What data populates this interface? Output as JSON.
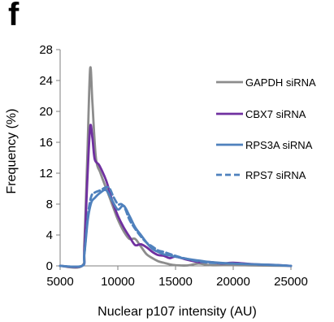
{
  "panel_label": "f",
  "chart_data": {
    "type": "line",
    "title": "",
    "xlabel": "Nuclear p107 intensity (AU)",
    "ylabel": "Frequency (%)",
    "xlim": [
      5000,
      25000
    ],
    "ylim": [
      0,
      28
    ],
    "xticks": [
      5000,
      10000,
      15000,
      20000,
      25000
    ],
    "yticks": [
      0,
      4,
      8,
      12,
      16,
      20,
      24,
      28
    ],
    "grid": false,
    "legend_position": "right",
    "series": [
      {
        "name": "GAPDH siRNA",
        "color": "#8c8c8c",
        "style": "solid",
        "x": [
          5000,
          6900,
          7100,
          7350,
          7600,
          7800,
          8100,
          8500,
          9000,
          9500,
          10000,
          10500,
          11000,
          11500,
          12000,
          12500,
          13000,
          13500,
          14000,
          14500,
          15000,
          16000,
          17000,
          18000,
          20000,
          22000,
          25000
        ],
        "y": [
          0,
          0,
          3.0,
          14.0,
          25.5,
          21.0,
          14.0,
          12.0,
          10.0,
          8.0,
          6.0,
          4.5,
          3.5,
          3.5,
          2.5,
          1.5,
          1.0,
          0.6,
          0.4,
          0.2,
          0.1,
          0.05,
          0.3,
          0.1,
          0.1,
          0.05,
          0
        ]
      },
      {
        "name": "CBX7 siRNA",
        "color": "#7030a0",
        "style": "solid",
        "x": [
          5000,
          6900,
          7100,
          7350,
          7600,
          7800,
          8000,
          8400,
          9000,
          9500,
          10000,
          10500,
          11000,
          11500,
          12000,
          12500,
          13000,
          13500,
          14000,
          14500,
          15000,
          16000,
          17000,
          18000,
          19000,
          20000,
          22000,
          24000,
          25000
        ],
        "y": [
          0,
          0,
          2.0,
          11.0,
          18.0,
          16.5,
          13.8,
          13.0,
          11.0,
          8.5,
          6.5,
          5.0,
          3.8,
          2.7,
          2.8,
          2.4,
          1.8,
          1.4,
          1.3,
          1.0,
          1.2,
          0.8,
          0.5,
          0.5,
          0.3,
          0.4,
          0.2,
          0.1,
          0
        ]
      },
      {
        "name": "RPS3A siRNA",
        "color": "#4f81bd",
        "style": "solid",
        "x": [
          5000,
          6900,
          7100,
          7400,
          7700,
          8000,
          8500,
          9000,
          9500,
          10000,
          10500,
          11000,
          11500,
          12000,
          12500,
          13000,
          13500,
          14000,
          15000,
          16000,
          17000,
          18000,
          20000,
          22000,
          24000,
          25000
        ],
        "y": [
          0,
          0,
          1.5,
          6.0,
          8.2,
          8.8,
          9.5,
          9.8,
          8.5,
          7.3,
          7.8,
          6.5,
          5.0,
          4.0,
          3.0,
          2.2,
          1.8,
          1.5,
          1.2,
          0.9,
          0.7,
          0.5,
          0.3,
          0.2,
          0.1,
          0
        ]
      },
      {
        "name": "RPS7 siRNA",
        "color": "#4f81bd",
        "style": "dashed",
        "x": [
          5000,
          6900,
          7100,
          7400,
          7700,
          8000,
          8500,
          9000,
          9300,
          9600,
          10000,
          10300,
          10600,
          11000,
          11500,
          12000,
          12500,
          13000,
          13500,
          14000,
          15000,
          16000,
          17000,
          18000,
          20000,
          22000,
          25000
        ],
        "y": [
          0,
          0,
          1.5,
          6.5,
          9.0,
          9.5,
          9.8,
          10.2,
          10.0,
          9.0,
          8.0,
          8.0,
          7.5,
          6.0,
          4.8,
          3.8,
          3.0,
          2.5,
          2.0,
          1.8,
          1.3,
          0.9,
          0.6,
          0.4,
          0.3,
          0.2,
          0
        ]
      }
    ]
  }
}
